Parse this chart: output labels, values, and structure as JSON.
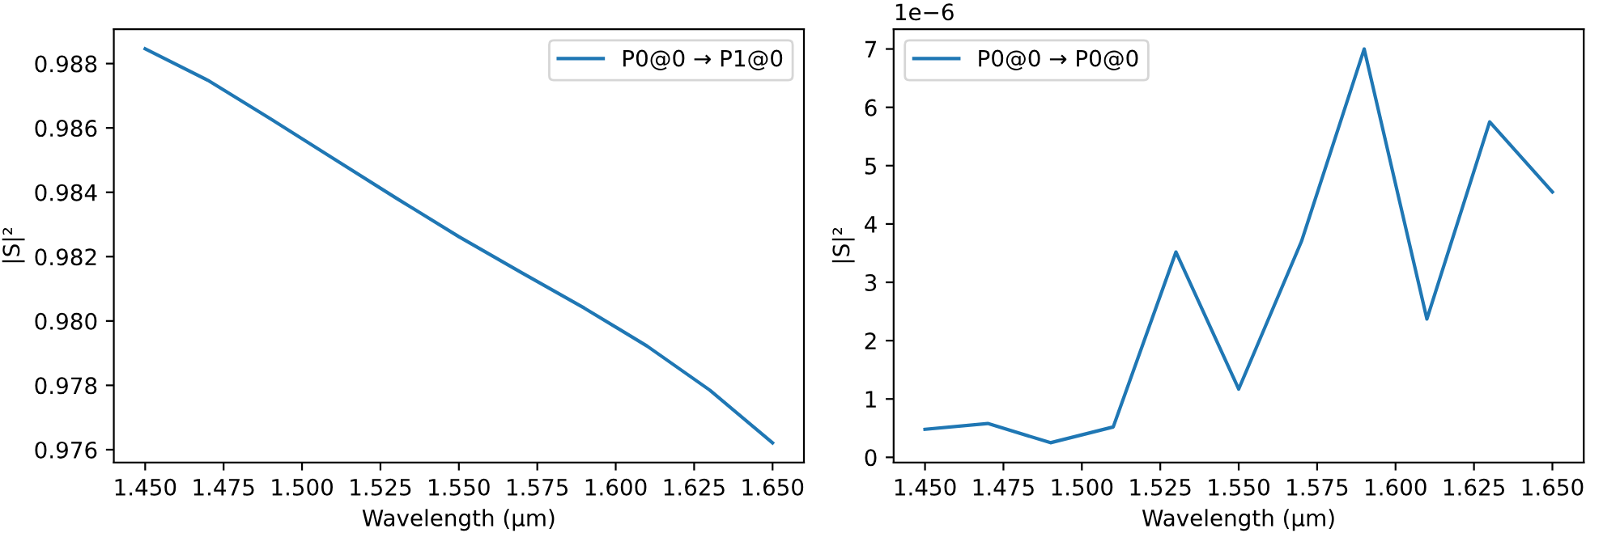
{
  "chart_data": [
    {
      "type": "line",
      "xlabel": "Wavelength (µm)",
      "ylabel": "|S|²",
      "x": [
        1.45,
        1.47,
        1.49,
        1.51,
        1.53,
        1.55,
        1.57,
        1.59,
        1.61,
        1.63,
        1.65
      ],
      "series": [
        {
          "name": "P0@0 → P1@0",
          "color": "#1f77b4",
          "values": [
            0.98846,
            0.98748,
            0.98628,
            0.98505,
            0.98382,
            0.98262,
            0.9815,
            0.9804,
            0.97922,
            0.97785,
            0.97621
          ]
        }
      ],
      "xlim": [
        1.44,
        1.66
      ],
      "xticks": [
        {
          "value": 1.45,
          "label": "1.450"
        },
        {
          "value": 1.475,
          "label": "1.475"
        },
        {
          "value": 1.5,
          "label": "1.500"
        },
        {
          "value": 1.525,
          "label": "1.525"
        },
        {
          "value": 1.55,
          "label": "1.550"
        },
        {
          "value": 1.575,
          "label": "1.575"
        },
        {
          "value": 1.6,
          "label": "1.600"
        },
        {
          "value": 1.625,
          "label": "1.625"
        },
        {
          "value": 1.65,
          "label": "1.650"
        }
      ],
      "ylim": [
        0.9756,
        0.98907
      ],
      "yticks": [
        0.976,
        0.978,
        {
          "value": 0.98,
          "label": "0.980"
        },
        0.982,
        0.984,
        0.986,
        0.988
      ],
      "legend": "top right",
      "grid": false,
      "marker": "none",
      "line_style": "solid"
    },
    {
      "type": "line",
      "xlabel": "Wavelength (µm)",
      "ylabel": "|S|²",
      "annotations": [
        "1e−6"
      ],
      "x": [
        1.45,
        1.47,
        1.49,
        1.51,
        1.53,
        1.55,
        1.57,
        1.59,
        1.61,
        1.63,
        1.65
      ],
      "series": [
        {
          "name": "P0@0 → P0@0",
          "color": "#1f77b4",
          "values": [
            0.48,
            0.58,
            0.25,
            0.52,
            3.52,
            1.17,
            3.7,
            7.0,
            2.37,
            5.75,
            4.55
          ]
        }
      ],
      "xlim": [
        1.44,
        1.66
      ],
      "xticks": [
        {
          "value": 1.45,
          "label": "1.450"
        },
        {
          "value": 1.475,
          "label": "1.475"
        },
        {
          "value": 1.5,
          "label": "1.500"
        },
        {
          "value": 1.525,
          "label": "1.525"
        },
        {
          "value": 1.55,
          "label": "1.550"
        },
        {
          "value": 1.575,
          "label": "1.575"
        },
        {
          "value": 1.6,
          "label": "1.600"
        },
        {
          "value": 1.625,
          "label": "1.625"
        },
        {
          "value": 1.65,
          "label": "1.650"
        }
      ],
      "ylim": [
        -0.09,
        7.34
      ],
      "yticks": [
        0,
        1,
        2,
        3,
        4,
        5,
        6,
        7
      ],
      "legend": "top left",
      "grid": false,
      "marker": "none",
      "line_style": "solid"
    }
  ]
}
